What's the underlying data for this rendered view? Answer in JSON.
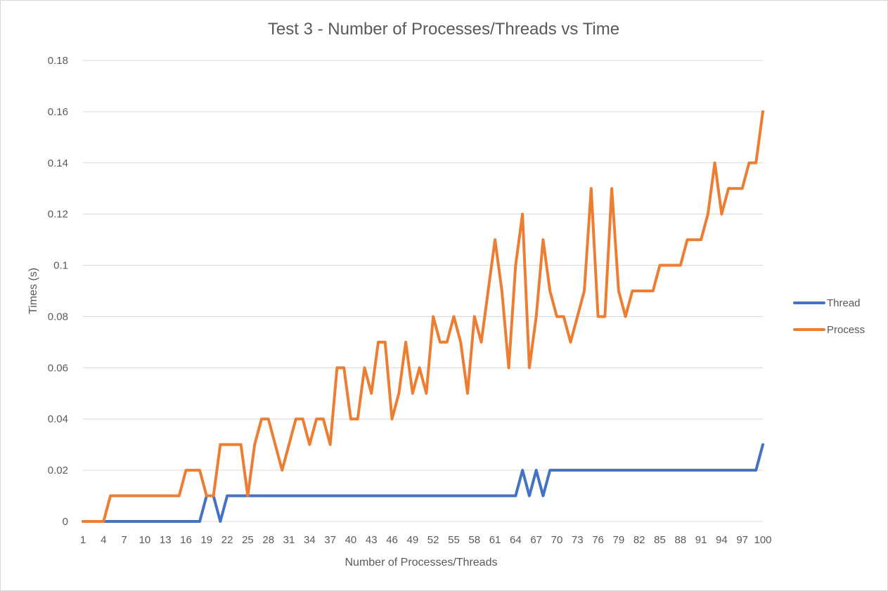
{
  "chart_data": {
    "type": "line",
    "title": "Test 3 - Number of Processes/Threads  vs Time",
    "xlabel": "Number of Processes/Threads",
    "ylabel": "Times (s)",
    "x": [
      1,
      2,
      3,
      4,
      5,
      6,
      7,
      8,
      9,
      10,
      11,
      12,
      13,
      14,
      15,
      16,
      17,
      18,
      19,
      20,
      21,
      22,
      23,
      24,
      25,
      26,
      27,
      28,
      29,
      30,
      31,
      32,
      33,
      34,
      35,
      36,
      37,
      38,
      39,
      40,
      41,
      42,
      43,
      44,
      45,
      46,
      47,
      48,
      49,
      50,
      51,
      52,
      53,
      54,
      55,
      56,
      57,
      58,
      59,
      60,
      61,
      62,
      63,
      64,
      65,
      66,
      67,
      68,
      69,
      70,
      71,
      72,
      73,
      74,
      75,
      76,
      77,
      78,
      79,
      80,
      81,
      82,
      83,
      84,
      85,
      86,
      87,
      88,
      89,
      90,
      91,
      92,
      93,
      94,
      95,
      96,
      97,
      98,
      99,
      100
    ],
    "x_tick_labels": [
      "1",
      "4",
      "7",
      "10",
      "13",
      "16",
      "19",
      "22",
      "25",
      "28",
      "31",
      "34",
      "37",
      "40",
      "43",
      "46",
      "49",
      "52",
      "55",
      "58",
      "61",
      "64",
      "67",
      "70",
      "73",
      "76",
      "79",
      "82",
      "85",
      "88",
      "91",
      "94",
      "97",
      "100"
    ],
    "y_tick_labels": [
      "0",
      "0.02",
      "0.04",
      "0.06",
      "0.08",
      "0.1",
      "0.12",
      "0.14",
      "0.16",
      "0.18"
    ],
    "ylim": [
      0,
      0.18
    ],
    "grid": true,
    "legend_position": "right",
    "series": [
      {
        "name": "Thread",
        "color": "#4472c4",
        "values": [
          0,
          0,
          0,
          0,
          0,
          0,
          0,
          0,
          0,
          0,
          0,
          0,
          0,
          0,
          0,
          0,
          0,
          0,
          0.01,
          0.01,
          0,
          0.01,
          0.01,
          0.01,
          0.01,
          0.01,
          0.01,
          0.01,
          0.01,
          0.01,
          0.01,
          0.01,
          0.01,
          0.01,
          0.01,
          0.01,
          0.01,
          0.01,
          0.01,
          0.01,
          0.01,
          0.01,
          0.01,
          0.01,
          0.01,
          0.01,
          0.01,
          0.01,
          0.01,
          0.01,
          0.01,
          0.01,
          0.01,
          0.01,
          0.01,
          0.01,
          0.01,
          0.01,
          0.01,
          0.01,
          0.01,
          0.01,
          0.01,
          0.01,
          0.02,
          0.01,
          0.02,
          0.01,
          0.02,
          0.02,
          0.02,
          0.02,
          0.02,
          0.02,
          0.02,
          0.02,
          0.02,
          0.02,
          0.02,
          0.02,
          0.02,
          0.02,
          0.02,
          0.02,
          0.02,
          0.02,
          0.02,
          0.02,
          0.02,
          0.02,
          0.02,
          0.02,
          0.02,
          0.02,
          0.02,
          0.02,
          0.02,
          0.02,
          0.02,
          0.03
        ]
      },
      {
        "name": "Process",
        "color": "#ed7d31",
        "values": [
          0,
          0,
          0,
          0,
          0.01,
          0.01,
          0.01,
          0.01,
          0.01,
          0.01,
          0.01,
          0.01,
          0.01,
          0.01,
          0.01,
          0.02,
          0.02,
          0.02,
          0.01,
          0.01,
          0.03,
          0.03,
          0.03,
          0.03,
          0.01,
          0.03,
          0.04,
          0.04,
          0.03,
          0.02,
          0.03,
          0.04,
          0.04,
          0.03,
          0.04,
          0.04,
          0.03,
          0.06,
          0.06,
          0.04,
          0.04,
          0.06,
          0.05,
          0.07,
          0.07,
          0.04,
          0.05,
          0.07,
          0.05,
          0.06,
          0.05,
          0.08,
          0.07,
          0.07,
          0.08,
          0.07,
          0.05,
          0.08,
          0.07,
          0.09,
          0.11,
          0.09,
          0.06,
          0.1,
          0.12,
          0.06,
          0.08,
          0.11,
          0.09,
          0.08,
          0.08,
          0.07,
          0.08,
          0.09,
          0.13,
          0.08,
          0.08,
          0.13,
          0.09,
          0.08,
          0.09,
          0.09,
          0.09,
          0.09,
          0.1,
          0.1,
          0.1,
          0.1,
          0.11,
          0.11,
          0.11,
          0.12,
          0.14,
          0.12,
          0.13,
          0.13,
          0.13,
          0.14,
          0.14,
          0.16
        ]
      }
    ]
  }
}
